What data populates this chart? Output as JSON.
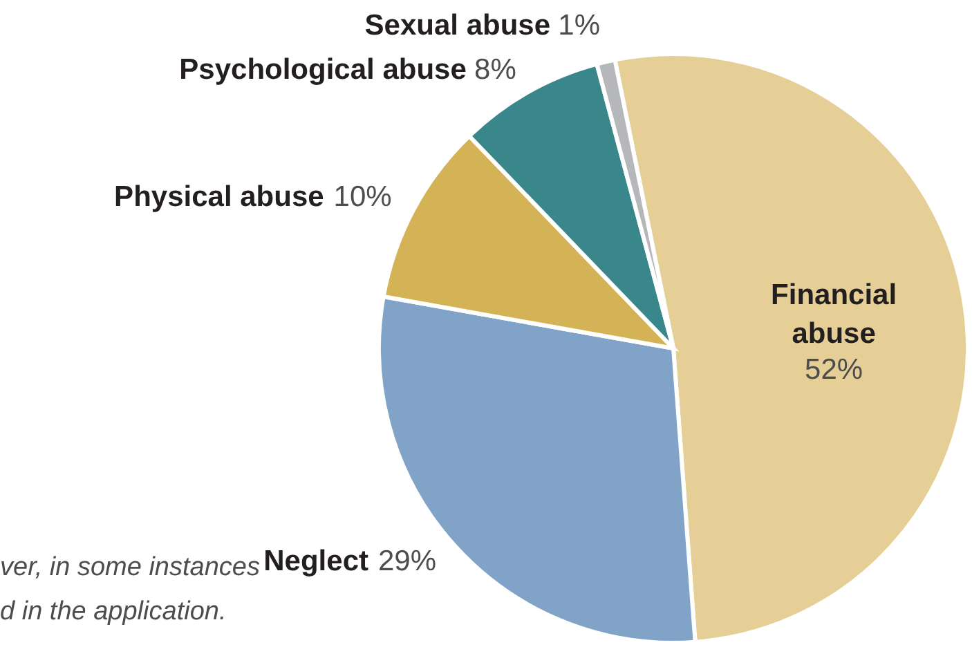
{
  "chart_data": {
    "type": "pie",
    "categories": [
      "Financial abuse",
      "Neglect",
      "Physical abuse",
      "Psychological abuse",
      "Sexual abuse"
    ],
    "values": [
      52,
      29,
      10,
      8,
      1
    ],
    "colors": [
      "#e5cf97",
      "#81a3c8",
      "#d4b356",
      "#3a878b",
      "#b5b7ba"
    ],
    "value_labels": [
      "52%",
      "29%",
      "10%",
      "8%",
      "1%"
    ],
    "annotations": [
      "ver, in some instances",
      "d in the application."
    ]
  }
}
